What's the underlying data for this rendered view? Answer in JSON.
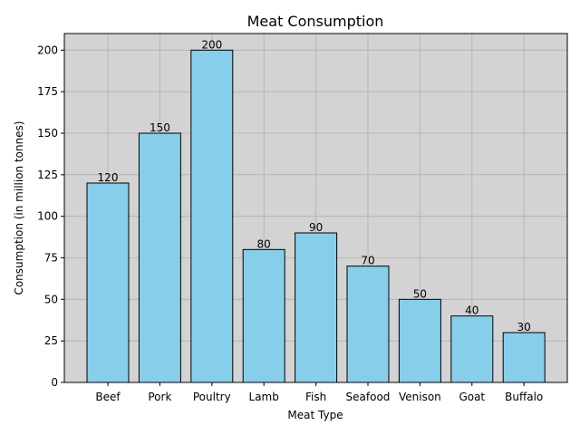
{
  "chart_data": {
    "type": "bar",
    "title": "Meat Consumption",
    "xlabel": "Meat Type",
    "ylabel": "Consumption (in million tonnes)",
    "categories": [
      "Beef",
      "Pork",
      "Poultry",
      "Lamb",
      "Fish",
      "Seafood",
      "Venison",
      "Goat",
      "Buffalo"
    ],
    "values": [
      120,
      150,
      200,
      80,
      90,
      70,
      50,
      40,
      30
    ],
    "ylim": [
      0,
      210
    ],
    "yticks": [
      0,
      25,
      50,
      75,
      100,
      125,
      150,
      175,
      200
    ],
    "grid": true,
    "bar_color": "#87ceeb",
    "bar_edge_color": "#000000",
    "plot_background": "#d3d3d3"
  }
}
